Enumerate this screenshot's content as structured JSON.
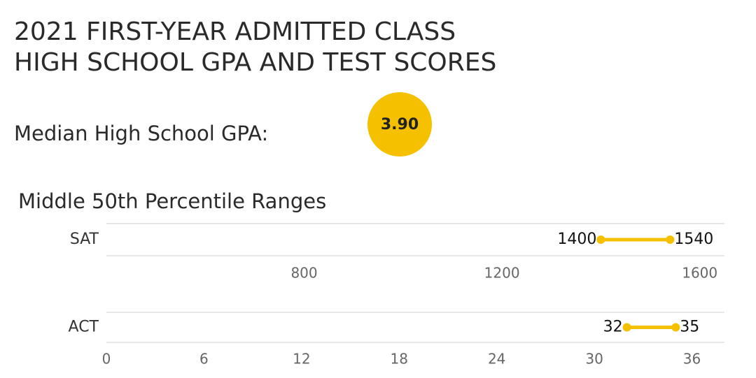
{
  "header": {
    "title_lines": [
      "2021 FIRST-YEAR ADMITTED CLASS",
      "HIGH SCHOOL GPA AND TEST SCORES"
    ]
  },
  "gpa": {
    "label": "Median High School GPA:",
    "value": "3.90"
  },
  "subtitle": "Middle 50th Percentile Ranges",
  "chart_data": [
    {
      "type": "range",
      "categories": [
        "SAT"
      ],
      "low": [
        1400
      ],
      "high": [
        1540
      ],
      "color": "#f5c000",
      "xlim": [
        400,
        1650
      ],
      "xticks": [
        800,
        1200,
        1600
      ]
    },
    {
      "type": "range",
      "categories": [
        "ACT"
      ],
      "low": [
        32
      ],
      "high": [
        35
      ],
      "color": "#f5c000",
      "xlim": [
        0,
        38
      ],
      "xticks": [
        0,
        6,
        12,
        18,
        24,
        30,
        36
      ]
    }
  ]
}
